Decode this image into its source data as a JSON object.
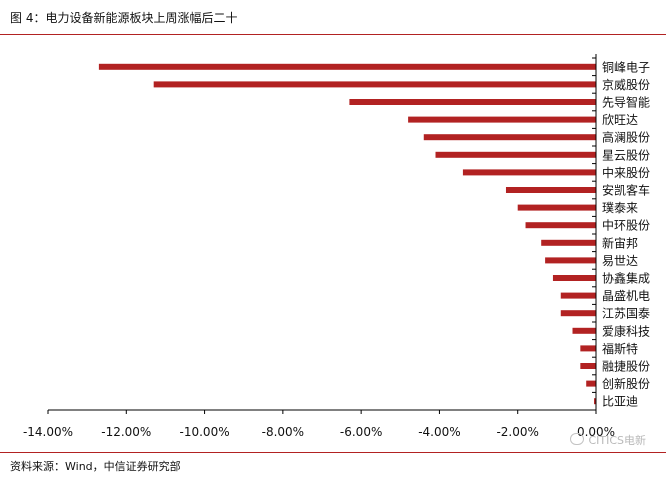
{
  "header": {
    "title": "图 4：电力设备新能源板块上周涨幅后二十"
  },
  "footer": {
    "source": "资料来源：Wind，中信证券研究部",
    "watermark": "CITICS电新"
  },
  "colors": {
    "bar": "#b22222",
    "rule": "#b22222",
    "axis": "#000000"
  },
  "chart_data": {
    "type": "bar",
    "orientation": "horizontal",
    "title": "",
    "xlabel": "",
    "ylabel": "",
    "xlim": [
      -14,
      0
    ],
    "x_ticks": [
      "-14.00%",
      "-12.00%",
      "-10.00%",
      "-8.00%",
      "-6.00%",
      "-4.00%",
      "-2.00%",
      "0.00%"
    ],
    "grid": false,
    "legend": "none",
    "categories": [
      "铜峰电子",
      "京威股份",
      "先导智能",
      "欣旺达",
      "高澜股份",
      "星云股份",
      "中来股份",
      "安凯客车",
      "璞泰来",
      "中环股份",
      "新宙邦",
      "易世达",
      "协鑫集成",
      "晶盛机电",
      "江苏国泰",
      "爱康科技",
      "福斯特",
      "融捷股份",
      "创新股份",
      "比亚迪"
    ],
    "values": [
      -12.7,
      -11.3,
      -6.3,
      -4.8,
      -4.4,
      -4.1,
      -3.4,
      -2.3,
      -2.0,
      -1.8,
      -1.4,
      -1.3,
      -1.1,
      -0.9,
      -0.9,
      -0.6,
      -0.4,
      -0.4,
      -0.25,
      -0.05
    ]
  }
}
